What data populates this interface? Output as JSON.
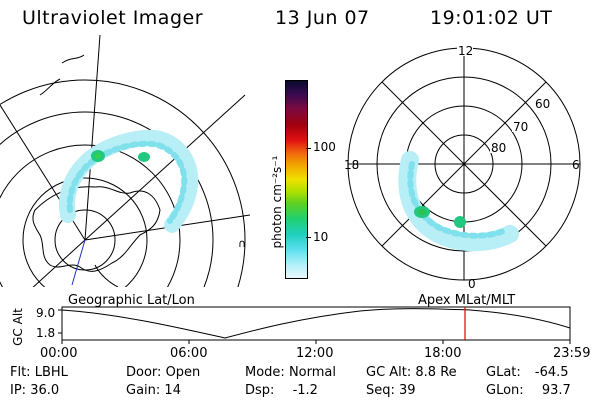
{
  "header": {
    "title": "Ultraviolet Imager",
    "date": "13 Jun 07",
    "time": "19:01:02 UT"
  },
  "colorbar": {
    "label": "photon cm⁻²s⁻¹",
    "ticks": [
      "100",
      "10"
    ],
    "colors": [
      "#0a0a30",
      "#3a0a50",
      "#7a0a40",
      "#a00010",
      "#e01010",
      "#f06010",
      "#f0a000",
      "#f0e000",
      "#b0e000",
      "#60d020",
      "#20d070",
      "#20d0c0",
      "#60e0f0",
      "#b0f0f8",
      "#e8f8fc"
    ]
  },
  "polar_plot": {
    "clock_labels": [
      "12",
      "18",
      "6",
      "0"
    ],
    "lat_labels": [
      "60",
      "70",
      "80"
    ]
  },
  "timeline": {
    "left_label": "Geographic Lat/Lon",
    "right_label": "Apex  MLat/MLT",
    "y_axis_title": "GC Alt",
    "y_ticks": [
      "9.0",
      "1.8"
    ],
    "x_ticks": [
      "00:00",
      "06:00",
      "12:00",
      "18:00",
      "23:59"
    ],
    "current_marker_color": "#e00000"
  },
  "info": {
    "row1": [
      {
        "key": "Flt:",
        "value": "LBHL"
      },
      {
        "key": "Door:",
        "value": "Open"
      },
      {
        "key": "Mode:",
        "value": "Normal"
      },
      {
        "key": "GC Alt:",
        "value": "8.8 Re"
      },
      {
        "key": "GLat:",
        "value": "-64.5"
      }
    ],
    "row2": [
      {
        "key": "IP:",
        "value": "36.0"
      },
      {
        "key": "Gain:",
        "value": "14"
      },
      {
        "key": "Dsp:",
        "value": "-1.2"
      },
      {
        "key": "Seq:",
        "value": "39"
      },
      {
        "key": "GLon:",
        "value": "93.7"
      }
    ]
  }
}
